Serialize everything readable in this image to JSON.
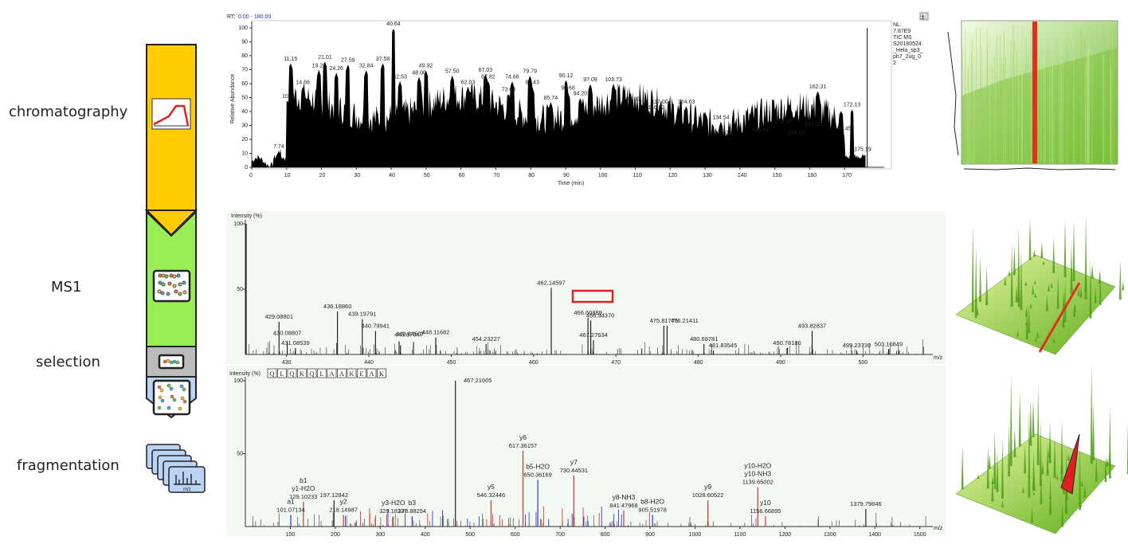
{
  "stages": {
    "chromatography": "chromatography",
    "ms1": "MS1",
    "selection": "selection",
    "fragmentation": "fragmentation"
  },
  "frag_icon_axis": "m/z",
  "colors": {
    "chromatography": "#ffcc00",
    "ms1": "#99ee55",
    "selection": "#bbbbbb",
    "fragmentation": "#bbd4f5",
    "highlight": "#e02020",
    "b_ion": "#d62020",
    "y_ion": "#2020d6"
  },
  "panels": {
    "chromatogram": {
      "rt_prefix": "RT:",
      "rt_range": "0.00 - 180.00",
      "pin_label": "±",
      "info_lines": [
        "NL:",
        "7.87E9",
        "TIC  MS",
        "S20180524",
        "_Hela_sp3_",
        "ph7_2ug_0",
        "2"
      ],
      "ylabel": "Relative Abundance",
      "xlabel": "Time (min)"
    },
    "ms1": {
      "ylabel": "Intensity (%)",
      "xlabel": "m/z",
      "selected_peak": "466.60889"
    },
    "ms2": {
      "ylabel": "Intensity (%)",
      "xlabel": "m/z",
      "sequence": [
        "Q",
        "L",
        "Q",
        "K",
        "Q",
        "L",
        "A",
        "A",
        "K",
        "E",
        "A",
        "K"
      ]
    }
  },
  "chart_data": [
    {
      "type": "area",
      "name": "chromatogram",
      "xlim": [
        0,
        180
      ],
      "ylim": [
        0,
        100
      ],
      "xticks": [
        0,
        10,
        20,
        30,
        40,
        50,
        60,
        70,
        80,
        90,
        100,
        110,
        120,
        130,
        140,
        150,
        160,
        170
      ],
      "yticks": [
        0,
        10,
        20,
        30,
        40,
        50,
        60,
        70,
        80,
        90,
        100
      ],
      "peaks": [
        {
          "x": 7.74,
          "y": 12,
          "label": "7.74"
        },
        {
          "x": 10.68,
          "y": 48,
          "label": "10.68"
        },
        {
          "x": 11.15,
          "y": 75,
          "label": "11.15"
        },
        {
          "x": 14.66,
          "y": 58,
          "label": "14.66"
        },
        {
          "x": 19.26,
          "y": 70,
          "label": "19.26"
        },
        {
          "x": 21.01,
          "y": 76,
          "label": "21.01"
        },
        {
          "x": 24.26,
          "y": 68,
          "label": "24.26"
        },
        {
          "x": 27.59,
          "y": 74,
          "label": "27.59"
        },
        {
          "x": 32.84,
          "y": 70,
          "label": "32.84"
        },
        {
          "x": 37.58,
          "y": 75,
          "label": "37.58"
        },
        {
          "x": 40.64,
          "y": 100,
          "label": "40.64"
        },
        {
          "x": 42.53,
          "y": 62,
          "label": "42.53"
        },
        {
          "x": 48.0,
          "y": 65,
          "label": "48.00"
        },
        {
          "x": 49.92,
          "y": 70,
          "label": "49.92"
        },
        {
          "x": 57.5,
          "y": 66,
          "label": "57.50"
        },
        {
          "x": 62.03,
          "y": 58,
          "label": "62.03"
        },
        {
          "x": 67.03,
          "y": 67,
          "label": "67.03"
        },
        {
          "x": 67.82,
          "y": 62,
          "label": "67.82"
        },
        {
          "x": 73.63,
          "y": 53,
          "label": "73.63"
        },
        {
          "x": 74.68,
          "y": 62,
          "label": "74.68"
        },
        {
          "x": 79.79,
          "y": 66,
          "label": "79.79"
        },
        {
          "x": 80.43,
          "y": 58,
          "label": "80.43"
        },
        {
          "x": 85.74,
          "y": 47,
          "label": "85.74"
        },
        {
          "x": 90.12,
          "y": 63,
          "label": "90.12"
        },
        {
          "x": 90.68,
          "y": 54,
          "label": "90.68"
        },
        {
          "x": 94.2,
          "y": 50,
          "label": "94.20"
        },
        {
          "x": 97.09,
          "y": 60,
          "label": "97.09"
        },
        {
          "x": 103.73,
          "y": 60,
          "label": "103.73"
        },
        {
          "x": 108.89,
          "y": 46,
          "label": "108.89"
        },
        {
          "x": 116.02,
          "y": 40,
          "label": "116.02"
        },
        {
          "x": 117.0,
          "y": 44,
          "label": "117.00"
        },
        {
          "x": 124.63,
          "y": 44,
          "label": "124.63"
        },
        {
          "x": 134.54,
          "y": 33,
          "label": "134.54"
        },
        {
          "x": 135.09,
          "y": 22,
          "label": "135.09"
        },
        {
          "x": 145.91,
          "y": 24,
          "label": "145.91"
        },
        {
          "x": 152.37,
          "y": 30,
          "label": "152.37"
        },
        {
          "x": 156.14,
          "y": 22,
          "label": "156.14"
        },
        {
          "x": 161.02,
          "y": 28,
          "label": "161.02"
        },
        {
          "x": 162.31,
          "y": 55,
          "label": "162.31"
        },
        {
          "x": 169.45,
          "y": 25,
          "label": "169.45"
        },
        {
          "x": 172.13,
          "y": 42,
          "label": "172.13"
        },
        {
          "x": 175.19,
          "y": 10,
          "label": "175.19"
        }
      ]
    },
    {
      "type": "bar",
      "name": "ms1",
      "xlim": [
        425,
        508
      ],
      "ylim": [
        0,
        100
      ],
      "xticks": [
        430,
        440,
        450,
        460,
        470,
        480,
        490,
        500
      ],
      "yticks": [
        0,
        50,
        100
      ],
      "peaks": [
        {
          "x": 425.1,
          "y": 100
        },
        {
          "x": 429.08801,
          "y": 25,
          "label": "429.08801"
        },
        {
          "x": 430.08807,
          "y": 10,
          "label": "430.08807"
        },
        {
          "x": 431.08539,
          "y": 5,
          "label": "431.08539"
        },
        {
          "x": 436.1886,
          "y": 33,
          "label": "436.18860"
        },
        {
          "x": 439.19791,
          "y": 27,
          "label": "439.19791"
        },
        {
          "x": 440.79941,
          "y": 18,
          "label": "440.79941"
        },
        {
          "x": 443.67047,
          "y": 10,
          "label": "443.67047"
        },
        {
          "x": 443.84607,
          "y": 7,
          "label": "443.84607"
        },
        {
          "x": 448.11682,
          "y": 13,
          "label": "448.11682"
        },
        {
          "x": 454.23227,
          "y": 8,
          "label": "454.23227"
        },
        {
          "x": 462.14597,
          "y": 51,
          "label": "462.14597"
        },
        {
          "x": 466.60889,
          "y": 28,
          "label": "466.60889"
        },
        {
          "x": 466.9437,
          "y": 26,
          "label": "466.94370"
        },
        {
          "x": 467.27634,
          "y": 11,
          "label": "467.27634"
        },
        {
          "x": 475.81775,
          "y": 22,
          "label": "475.81775"
        },
        {
          "x": 476.21411,
          "y": 22,
          "label": "476.21411"
        },
        {
          "x": 480.68781,
          "y": 8,
          "label": "480.68781"
        },
        {
          "x": 481.83545,
          "y": 3,
          "label": "481.83545"
        },
        {
          "x": 490.78186,
          "y": 5,
          "label": "490.78186"
        },
        {
          "x": 493.82837,
          "y": 18,
          "label": "493.82837"
        },
        {
          "x": 499.2373,
          "y": 3,
          "label": "499.23730"
        },
        {
          "x": 503.10849,
          "y": 4,
          "label": "503.10849"
        }
      ]
    },
    {
      "type": "bar",
      "name": "ms2",
      "xlim": [
        0,
        1520
      ],
      "ylim": [
        0,
        100
      ],
      "xticks": [
        100,
        200,
        300,
        400,
        500,
        600,
        700,
        800,
        900,
        1000,
        1100,
        1200,
        1300,
        1400,
        1500
      ],
      "yticks": [
        0,
        50,
        100
      ],
      "peaks": [
        {
          "x": 101.07134,
          "y": 8,
          "label": "101.07134",
          "ion": "a1",
          "color": "#2020d6"
        },
        {
          "x": 129.10233,
          "y": 17,
          "label": "129.10233",
          "ion": "b1 / y1-H2O",
          "color": "#d62020"
        },
        {
          "x": 197.12842,
          "y": 18,
          "label": "197.12842"
        },
        {
          "x": 218.14987,
          "y": 8,
          "label": "218.14987",
          "ion": "y2",
          "color": "#d62020"
        },
        {
          "x": 329.18137,
          "y": 7,
          "label": "329.18137",
          "ion": "y3-H2O",
          "color": "#d62020"
        },
        {
          "x": 370.88254,
          "y": 7,
          "label": "370.88254",
          "ion": "b3",
          "color": "#2020d6"
        },
        {
          "x": 467.21005,
          "y": 100,
          "label": "467.21005"
        },
        {
          "x": 546.32446,
          "y": 18,
          "label": "546.32446",
          "ion": "y5",
          "color": "#d62020"
        },
        {
          "x": 617.36157,
          "y": 52,
          "label": "617.36157",
          "ion": "y6",
          "color": "#d62020"
        },
        {
          "x": 650.36169,
          "y": 32,
          "label": "650.36169",
          "ion": "b5-H2O",
          "color": "#2020d6"
        },
        {
          "x": 730.44531,
          "y": 35,
          "label": "730.44531",
          "ion": "y7",
          "color": "#d62020"
        },
        {
          "x": 841.47968,
          "y": 11,
          "label": "841.47968",
          "ion": "y8-NH3",
          "color": "#d62020"
        },
        {
          "x": 905.51978,
          "y": 8,
          "label": "905.51978",
          "ion": "b8-H2O",
          "color": "#2020d6"
        },
        {
          "x": 1028.60522,
          "y": 18,
          "label": "1028.60522",
          "ion": "y9",
          "color": "#d62020"
        },
        {
          "x": 1139.65002,
          "y": 27,
          "label": "1139.65002",
          "ion": "y10-H2O / y10-NH3",
          "color": "#d62020"
        },
        {
          "x": 1156.66895,
          "y": 7,
          "label": "1156.66895",
          "ion": "y10",
          "color": "#d62020"
        },
        {
          "x": 1379.79846,
          "y": 12,
          "label": "1379.79846"
        }
      ]
    }
  ]
}
